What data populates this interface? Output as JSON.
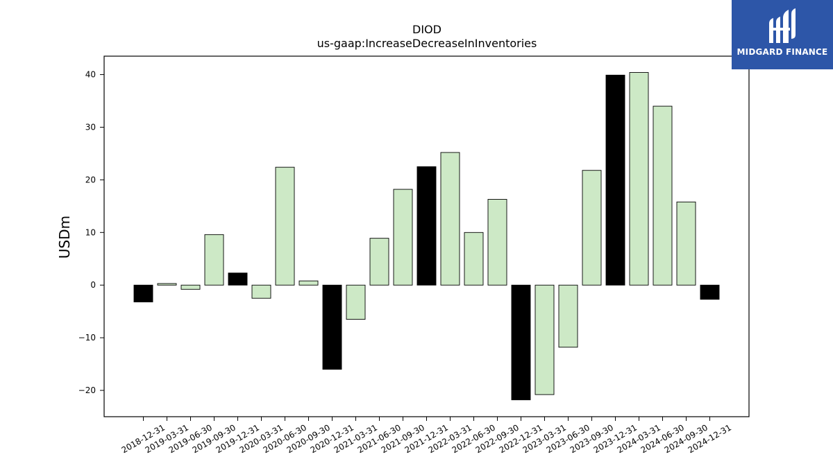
{
  "logo": {
    "text": "MIDGARD FINANCE"
  },
  "chart_data": {
    "type": "bar",
    "title": "DIOD",
    "subtitle": "us-gaap:IncreaseDecreaseInInventories",
    "xlabel": "",
    "ylabel": "USDm",
    "ylim": [
      -25,
      43.5
    ],
    "yticks": [
      -20,
      -10,
      0,
      10,
      20,
      30,
      40
    ],
    "categories": [
      "2018-12-31",
      "2019-03-31",
      "2019-06-30",
      "2019-09-30",
      "2019-12-31",
      "2020-03-31",
      "2020-06-30",
      "2020-09-30",
      "2020-12-31",
      "2021-03-31",
      "2021-06-30",
      "2021-09-30",
      "2021-12-31",
      "2022-03-31",
      "2022-06-30",
      "2022-09-30",
      "2022-12-31",
      "2023-03-31",
      "2023-06-30",
      "2023-09-30",
      "2023-12-31",
      "2024-03-31",
      "2024-06-30",
      "2024-09-30",
      "2024-12-31"
    ],
    "values": [
      -3.2,
      0.3,
      -0.8,
      9.6,
      2.3,
      -2.5,
      22.4,
      0.8,
      -16.0,
      -6.5,
      8.9,
      18.2,
      22.5,
      25.2,
      10.0,
      16.3,
      -21.8,
      -20.8,
      -11.8,
      21.8,
      39.9,
      40.4,
      34.0,
      15.8,
      -2.7
    ],
    "colors": {
      "annual": "#000000",
      "quarter": "#cde9c6",
      "edge": "#000000"
    },
    "highlight_annual": [
      true,
      false,
      false,
      false,
      true,
      false,
      false,
      false,
      true,
      false,
      false,
      false,
      true,
      false,
      false,
      false,
      true,
      false,
      false,
      false,
      true,
      false,
      false,
      false,
      true
    ]
  }
}
